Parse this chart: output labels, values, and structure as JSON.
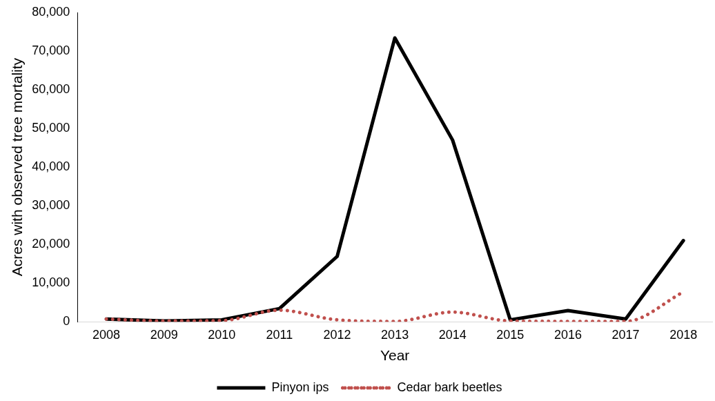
{
  "chart_data": {
    "type": "line",
    "xlabel": "Year",
    "ylabel": "Acres with observed tree mortality",
    "categories": [
      "2008",
      "2009",
      "2010",
      "2011",
      "2012",
      "2013",
      "2014",
      "2015",
      "2016",
      "2017",
      "2018"
    ],
    "series": [
      {
        "name": "Pinyon ips",
        "color": "#000000",
        "line_style": "solid",
        "values": [
          700,
          200,
          500,
          3400,
          16900,
          73400,
          47000,
          500,
          2900,
          700,
          21000
        ]
      },
      {
        "name": "Cedar bark beetles",
        "color": "#c0504d",
        "line_style": "dotted",
        "values": [
          700,
          200,
          300,
          3000,
          500,
          100,
          2500,
          200,
          100,
          100,
          7700
        ]
      }
    ],
    "ylim": [
      0,
      80000
    ],
    "yticks": [
      0,
      {
        "value": 10000,
        "label": "10,000"
      },
      {
        "value": 20000,
        "label": "20,000"
      },
      {
        "value": 30000,
        "label": "30,000"
      },
      {
        "value": 40000,
        "label": "40,000"
      },
      {
        "value": 50000,
        "label": "50,000"
      },
      {
        "value": 60000,
        "label": "60,000"
      },
      {
        "value": 70000,
        "label": "70,000"
      },
      {
        "value": 80000,
        "label": "80,000"
      }
    ],
    "grid": false,
    "legend": "bottom",
    "marker": "none"
  }
}
